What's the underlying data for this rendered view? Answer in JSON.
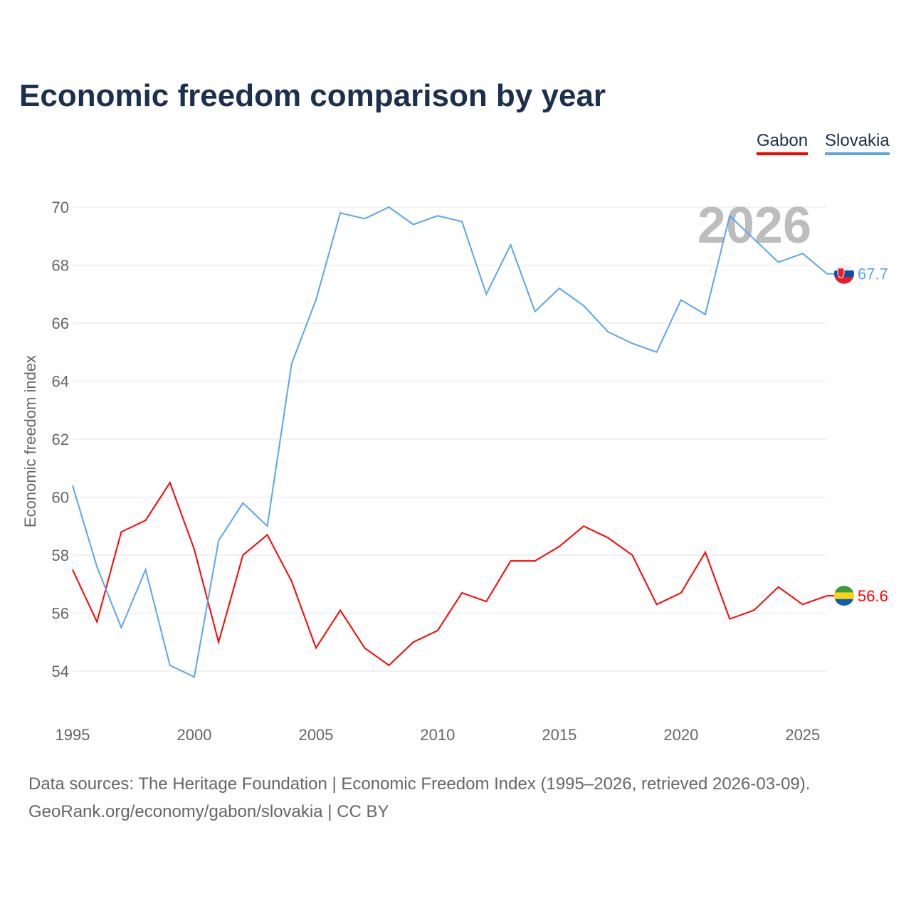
{
  "chart_data": {
    "type": "line",
    "title": "Economic freedom comparison by year",
    "xlabel": "",
    "ylabel": "Economic freedom index",
    "ylim": [
      53,
      71
    ],
    "xlim": [
      1995,
      2026
    ],
    "yticks": [
      54,
      56,
      58,
      60,
      62,
      64,
      66,
      68,
      70
    ],
    "xticks": [
      1995,
      2000,
      2005,
      2010,
      2015,
      2020,
      2025
    ],
    "grid": true,
    "legend_position": "top-right",
    "year_watermark": "2026",
    "x": [
      1995,
      1996,
      1997,
      1998,
      1999,
      2000,
      2001,
      2002,
      2003,
      2004,
      2005,
      2006,
      2007,
      2008,
      2009,
      2010,
      2011,
      2012,
      2013,
      2014,
      2015,
      2016,
      2017,
      2018,
      2019,
      2020,
      2021,
      2022,
      2023,
      2024,
      2025,
      2026
    ],
    "series": [
      {
        "name": "Gabon",
        "color": "#ff0000",
        "end_label": "56.6",
        "values": [
          57.5,
          55.7,
          58.8,
          59.2,
          60.5,
          58.2,
          55.0,
          58.0,
          58.7,
          57.1,
          54.8,
          56.1,
          54.8,
          54.2,
          55.0,
          55.4,
          56.7,
          56.4,
          57.8,
          57.8,
          58.3,
          59.0,
          58.6,
          58.0,
          56.3,
          56.7,
          58.1,
          55.8,
          56.1,
          56.9,
          56.3,
          56.6
        ]
      },
      {
        "name": "Slovakia",
        "color": "#5aa5ea",
        "end_label": "67.7",
        "values": [
          60.4,
          57.6,
          55.5,
          57.5,
          54.2,
          53.8,
          58.5,
          59.8,
          59.0,
          64.6,
          66.8,
          69.8,
          69.6,
          70.0,
          69.4,
          69.7,
          69.5,
          67.0,
          68.7,
          66.4,
          67.2,
          66.6,
          65.7,
          65.3,
          65.0,
          66.8,
          66.3,
          69.7,
          68.9,
          68.1,
          68.4,
          67.7
        ]
      }
    ]
  },
  "footer": {
    "source": "Data sources: The Heritage Foundation | Economic Freedom Index (1995–2026, retrieved 2026-03-09).",
    "credit": "GeoRank.org/economy/gabon/slovakia | CC BY"
  }
}
